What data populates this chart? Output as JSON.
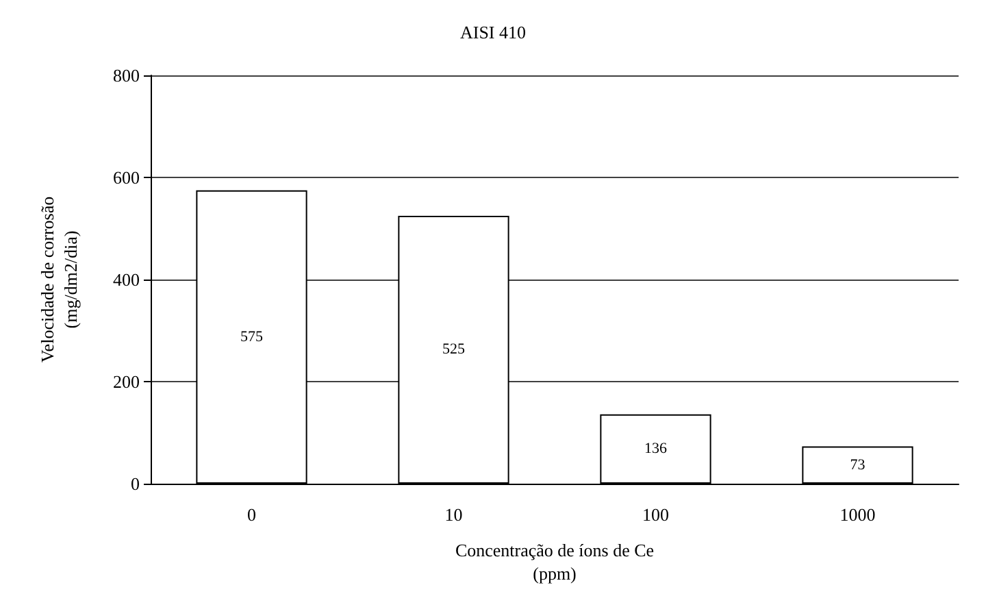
{
  "chart_data": {
    "type": "bar",
    "title": "AISI 410",
    "xlabel": "Concentração de íons de Ce\n(ppm)",
    "ylabel": "Velocidade de corrosão\n(mg/dm2/dia)",
    "categories": [
      "0",
      "10",
      "100",
      "1000"
    ],
    "values": [
      575,
      525,
      136,
      73
    ],
    "color": "#ffffff",
    "ylim": [
      0,
      800
    ],
    "yticks": [
      0,
      200,
      400,
      600,
      800
    ],
    "grid": "y",
    "data_labels": true
  }
}
